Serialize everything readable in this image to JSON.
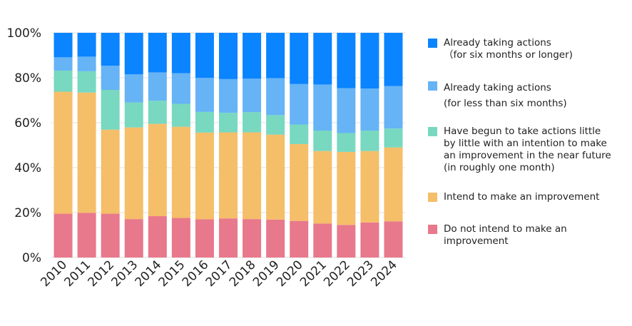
{
  "chart_data": {
    "type": "bar",
    "stacked": true,
    "normalized": true,
    "categories": [
      "2010",
      "2011",
      "2012",
      "2013",
      "2014",
      "2015",
      "2016",
      "2017",
      "2018",
      "2019",
      "2020",
      "2021",
      "2022",
      "2023",
      "2024"
    ],
    "ylim": [
      0,
      100
    ],
    "yticks": [
      "0%",
      "20%",
      "40%",
      "60%",
      "80%",
      "100%"
    ],
    "grid": true,
    "legend_placement": "right",
    "series": [
      {
        "name": "Do not intend to make an\nimprovement",
        "color": "#e8788b",
        "values": [
          19.5,
          19.9,
          19.5,
          17.1,
          18.4,
          17.6,
          17.0,
          17.4,
          17.1,
          16.9,
          16.3,
          15.1,
          14.5,
          15.6,
          16.1
        ]
      },
      {
        "name": "Intend to make an improvement",
        "color": "#f5be69",
        "values": [
          54.3,
          53.5,
          37.4,
          40.8,
          41.1,
          40.6,
          38.6,
          38.3,
          38.6,
          37.8,
          34.2,
          32.3,
          32.5,
          31.8,
          32.9
        ]
      },
      {
        "name": "Have begun to take actions little\nby little with an intention to make\nan improvement in the near future\n(in roughly one month)",
        "color": "#78d8c0",
        "values": [
          9.4,
          9.5,
          17.7,
          11.1,
          10.3,
          10.2,
          9.2,
          8.7,
          9.0,
          8.7,
          8.7,
          9.1,
          8.4,
          9.1,
          8.4
        ]
      },
      {
        "name": "Already taking actions\n(for less than six months)",
        "color": "#66b3f5",
        "values": [
          5.9,
          6.5,
          10.8,
          12.5,
          12.6,
          13.6,
          15.2,
          15.0,
          14.9,
          16.4,
          18.0,
          20.5,
          20.0,
          18.7,
          18.9
        ]
      },
      {
        "name": "Already taking actions\n（for six months or longer)",
        "color": "#0a84ff",
        "values": [
          10.9,
          10.6,
          14.6,
          18.5,
          17.6,
          18.0,
          20.0,
          20.6,
          20.4,
          20.2,
          22.8,
          23.0,
          24.6,
          24.8,
          23.7
        ]
      }
    ]
  }
}
